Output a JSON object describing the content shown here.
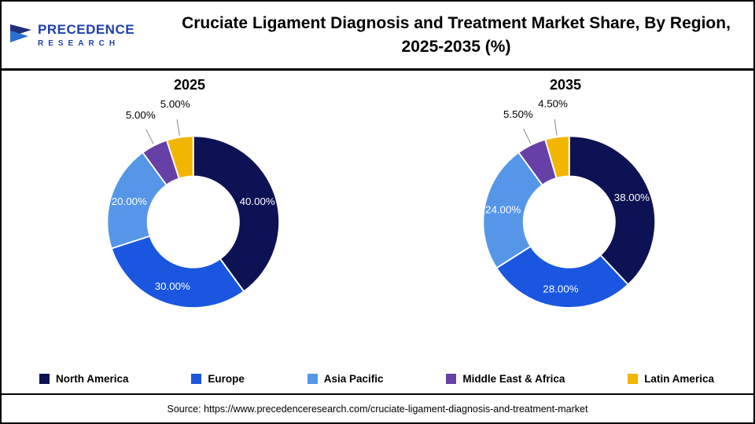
{
  "header": {
    "title": "Cruciate Ligament Diagnosis and Treatment Market Share, By Region, 2025-2035 (%)",
    "logo_line1": "PRECEDENCE",
    "logo_line2": "RESEARCH"
  },
  "chart_data": [
    {
      "type": "pie",
      "donut": true,
      "title": "2025",
      "categories": [
        "North America",
        "Europe",
        "Asia Pacific",
        "Middle East & Africa",
        "Latin America"
      ],
      "values": [
        40,
        30,
        20,
        5,
        5
      ],
      "labels": [
        "40.00%",
        "30.00%",
        "20.00%",
        "5.00%",
        "5.00%"
      ],
      "legend_position": "bottom"
    },
    {
      "type": "pie",
      "donut": true,
      "title": "2035",
      "categories": [
        "North America",
        "Europe",
        "Asia Pacific",
        "Middle East & Africa",
        "Latin America"
      ],
      "values": [
        38,
        28,
        24,
        5.5,
        4.5
      ],
      "labels": [
        "38.00%",
        "28.00%",
        "24.00%",
        "5.50%",
        "4.50%"
      ],
      "legend_position": "bottom"
    }
  ],
  "legend": [
    {
      "label": "North America",
      "color": "#0d1254"
    },
    {
      "label": "Europe",
      "color": "#1a56e0"
    },
    {
      "label": "Asia Pacific",
      "color": "#5596e8"
    },
    {
      "label": "Middle East & Africa",
      "color": "#6640a6"
    },
    {
      "label": "Latin America",
      "color": "#f2b600"
    }
  ],
  "colors": {
    "slice_divider": "#ffffff",
    "inside_label": "#ffffff",
    "outside_label": "#000000",
    "leader_line": "#7f7f7f"
  },
  "source": "Source: https://www.precedenceresearch.com/cruciate-ligament-diagnosis-and-treatment-market"
}
